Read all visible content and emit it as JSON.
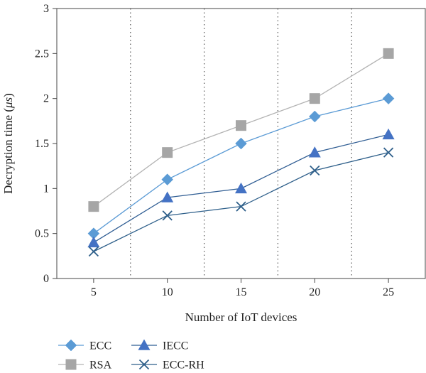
{
  "chart_data": {
    "type": "line",
    "title": "",
    "xlabel": "Number of IoT devices",
    "ylabel_main": "Decryption time (",
    "ylabel_unit": "μs",
    "ylabel_close": ")",
    "x": [
      5,
      10,
      15,
      20,
      25
    ],
    "x_ticks": [
      "5",
      "10",
      "15",
      "20",
      "25"
    ],
    "ylim": [
      0,
      3
    ],
    "y_ticks": [
      "0",
      "0.5",
      "1",
      "1.5",
      "2",
      "2.5",
      "3"
    ],
    "vertical_dotted_gridlines_between_x": true,
    "legend_placement": "bottom-left",
    "series": [
      {
        "name": "ECC",
        "values": [
          0.5,
          1.1,
          1.5,
          1.8,
          2.0
        ],
        "color": "#5b9bd5",
        "line_color": "#5b9bd5",
        "marker": "diamond"
      },
      {
        "name": "RSA",
        "values": [
          0.8,
          1.4,
          1.7,
          2.0,
          2.5
        ],
        "color": "#a6a6a6",
        "line_color": "#b3b3b3",
        "marker": "square"
      },
      {
        "name": "IECC",
        "values": [
          0.4,
          0.9,
          1.0,
          1.4,
          1.6
        ],
        "color": "#4472c4",
        "line_color": "#2f5d93",
        "marker": "triangle"
      },
      {
        "name": "ECC-RH",
        "values": [
          0.3,
          0.7,
          0.8,
          1.2,
          1.4
        ],
        "color": "#2e5f8a",
        "line_color": "#2e5f8a",
        "marker": "x"
      }
    ]
  }
}
